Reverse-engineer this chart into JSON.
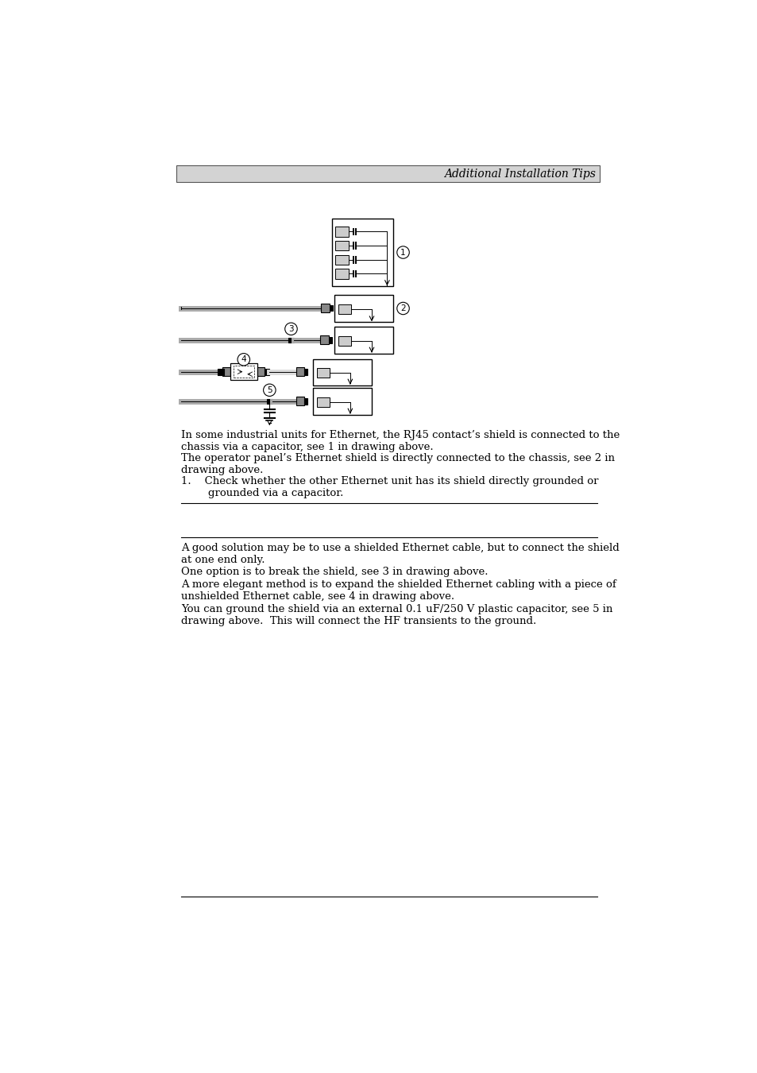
{
  "title": "Additional Installation Tips",
  "background_color": "#ffffff",
  "header_bg": "#d3d3d3",
  "body_text_1": "In some industrial units for Ethernet, the RJ45 contact’s shield is connected to the\nchassis via a capacitor, see 1 in drawing above.",
  "body_text_2": "The operator panel’s Ethernet shield is directly connected to the chassis, see 2 in\ndrawing above.",
  "list_item_1": "1.    Check whether the other Ethernet unit has its shield directly grounded or\n        grounded via a capacitor.",
  "body_text_3": "A good solution may be to use a shielded Ethernet cable, but to connect the shield\nat one end only.",
  "body_text_4": "One option is to break the shield, see 3 in drawing above.",
  "body_text_5": "A more elegant method is to expand the shielded Ethernet cabling with a piece of\nunshielded Ethernet cable, see 4 in drawing above.",
  "body_text_6": "You can ground the shield via an external 0.1 uF/250 V plastic capacitor, see 5 in\ndrawing above.  This will connect the HF transients to the ground.",
  "body_fs": 9.5,
  "header_fontsize": 10
}
